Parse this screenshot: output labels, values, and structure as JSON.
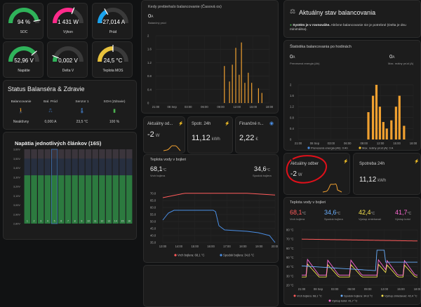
{
  "gauges": [
    {
      "value": "94 %",
      "label": "SOC",
      "color": "#2fb35a",
      "frac": 0.94
    },
    {
      "value": "1 431 W",
      "label": "Výkon",
      "color": "#ff2a8a",
      "frac": 0.62
    },
    {
      "value": "-27,014 A",
      "label": "Prúd",
      "color": "#1aa3ee",
      "frac": 0.33
    },
    {
      "value": "52,96 V",
      "label": "Napätie",
      "color": "#2fb35a",
      "frac": 0.78
    },
    {
      "value": "0,002 V",
      "label": "Delta V",
      "color": "#2fb35a",
      "frac": 0.12
    },
    {
      "value": "24,5 °C",
      "label": "Teplota MOS",
      "color": "#e8c23c",
      "frac": 0.5
    }
  ],
  "status": {
    "title": "Status Balanséra & Zdravie",
    "items": [
      {
        "label": "Balancovanie",
        "value": "Neaktívny"
      },
      {
        "label": "Bal. Prúd",
        "value": "0,000 A"
      },
      {
        "label": "Senzor 1",
        "value": "23,5 °C"
      },
      {
        "label": "SOH (Zdravie)",
        "value": "100 %"
      }
    ]
  },
  "cells": {
    "title": "Napätia jednotlivých článkov (16S)",
    "yticks": [
      "3,60V",
      "3,50V",
      "3,40V",
      "3,30V",
      "3,20V",
      "3,10V",
      "3,00V",
      "2,90V",
      "2,80V"
    ],
    "labels": [
      "1",
      "2",
      "3",
      "4",
      "5",
      "6",
      "7",
      "8",
      "9",
      "10",
      "11",
      "12",
      "13",
      "14",
      "15",
      "16"
    ],
    "values": [
      3.32,
      3.32,
      3.32,
      3.32,
      3.32,
      3.32,
      3.32,
      3.32,
      3.32,
      3.32,
      3.32,
      3.32,
      3.32,
      3.32,
      3.32,
      3.32
    ],
    "ymin": 2.8,
    "ymax": 3.6
  },
  "balhist": {
    "title": "Kedy prebiehalo balancovanie (Časová os)",
    "value": "0",
    "unit": "A",
    "sub": "Balančný prúd",
    "yticks": [
      "2",
      "1.6",
      "1.2",
      "0.8",
      "0.4",
      "0"
    ],
    "xticks": [
      "21:00",
      "08 Sep",
      "03:00",
      "06:00",
      "09:00",
      "12:00",
      "15:00",
      "18:00"
    ]
  },
  "current": {
    "title": "Aktuálny od...",
    "value": "-2",
    "unit": "W"
  },
  "spotr": {
    "title": "Spotr. 24h",
    "value": "11,12",
    "unit": "kWh"
  },
  "fin": {
    "title": "Finančné n...",
    "value": "2,22",
    "unit": "€"
  },
  "teplota": {
    "title": "Teplota vody v bojleri",
    "top": {
      "value": "68,1",
      "unit": "°C",
      "label": "Vrch bojlera"
    },
    "bottom": {
      "value": "34,6",
      "unit": "°C",
      "label": "Spodok bojlera"
    },
    "yticks": [
      "70.0",
      "65.0",
      "60.0",
      "55.0",
      "50.0",
      "45.0",
      "40.0",
      "35.0"
    ],
    "xticks": [
      "13:00",
      "14:00",
      "15:00",
      "16:00",
      "17:00",
      "18:00",
      "19:00",
      "20:00"
    ],
    "legend": [
      "Vrch bojlera: 68,1 °C",
      "Spodok bojlera: 34,6 °C"
    ]
  },
  "aktualny": {
    "title": "Aktuálny stav balancovania",
    "msg_bold": "Systém je v rovnováhe.",
    "msg": " Aktívne balancovanie nie je potrebné (Delta je dnu minimálna)."
  },
  "stat": {
    "title": "Štatistika balancovania po hodinách",
    "left": {
      "value": "0",
      "unit": "A",
      "label": "Prenesená energia (Ah)"
    },
    "right": {
      "value": "0",
      "unit": "A",
      "label": "Max. reálny prúd (A)"
    },
    "yticks": [
      "2",
      "1.6",
      "1.2",
      "0.8",
      "0.4",
      "0"
    ],
    "xticks": [
      "21:00",
      "08 Sep",
      "03:00",
      "06:00",
      "09:00",
      "12:00",
      "15:00",
      "18:00"
    ],
    "legend": [
      "Prenesená energia (Ah): 0 Ah",
      "Max. reálny prúd (A): 0 A"
    ]
  },
  "odber2": {
    "title": "Aktuálny odber",
    "value": "-2",
    "unit": "W"
  },
  "spotr2": {
    "title": "Spotreba 24h",
    "value": "11,12",
    "unit": "kWh"
  },
  "teplota2": {
    "title": "Teplota vody v bojleri",
    "vals": [
      {
        "value": "68,1",
        "unit": "°C",
        "label": "Vrch bojlera",
        "color": "#ff5a5a"
      },
      {
        "value": "34,6",
        "unit": "°C",
        "label": "Spodok bojlera",
        "color": "#6ab0ff"
      },
      {
        "value": "42,4",
        "unit": "°C",
        "label": "Výstup zmiešavač",
        "color": "#f4e04d"
      },
      {
        "value": "41,7",
        "unit": "°C",
        "label": "Výstup kotol",
        "color": "#ff6ad5"
      }
    ],
    "yticks": [
      "80 °C",
      "70 °C",
      "60 °C",
      "50 °C",
      "40 °C",
      "30 °C",
      "20 °C"
    ],
    "xticks": [
      "21:00",
      "08 Sep",
      "03:00",
      "06:00",
      "09:00",
      "12:00",
      "15:00",
      "18:00"
    ],
    "legend": [
      "Vrch bojlera: 68,1 °C",
      "Spodok bojlera: 34,6 °C",
      "Výstup zmiešavač: 42,4 °C",
      "Výstup kotol: 41,7 °C"
    ]
  }
}
